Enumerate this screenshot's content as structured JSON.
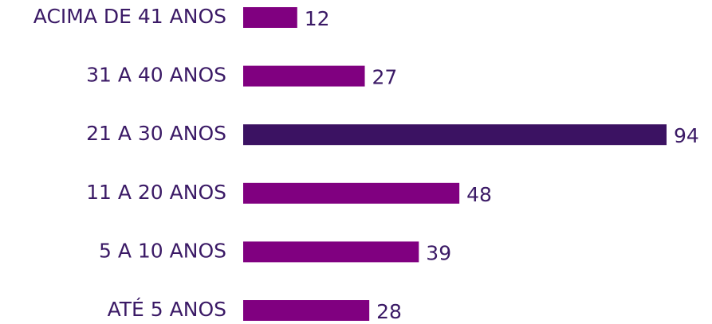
{
  "chart_data": {
    "type": "barh",
    "categories": [
      "ACIMA DE 41 ANOS",
      "31 A 40 ANOS",
      "21 A 30 ANOS",
      "11 A 20 ANOS",
      "5 A 10 ANOS",
      "ATÉ 5 ANOS"
    ],
    "values": [
      12,
      27,
      94,
      48,
      39,
      28
    ],
    "colors": [
      "#800080",
      "#800080",
      "#3b1262",
      "#800080",
      "#800080",
      "#800080"
    ]
  }
}
